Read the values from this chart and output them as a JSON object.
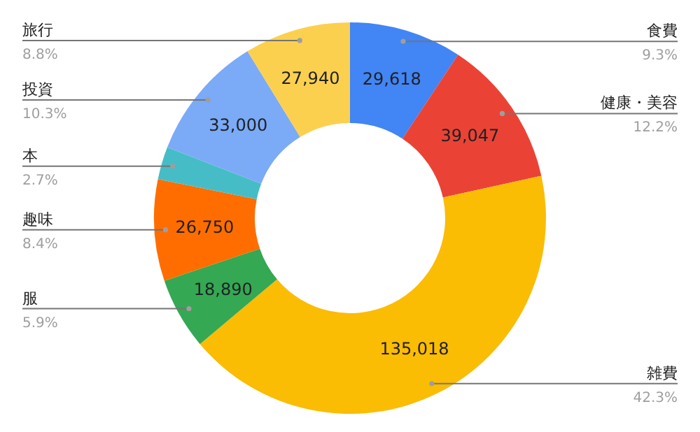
{
  "chart_data": {
    "type": "donut",
    "categories": [
      "食費",
      "健康・美容",
      "雑費",
      "服",
      "趣味",
      "本",
      "投資",
      "旅行"
    ],
    "values": [
      29618,
      39047,
      135018,
      18890,
      26750,
      8600,
      33000,
      27940
    ],
    "value_labels": [
      "29,618",
      "39,047",
      "135,018",
      "18,890",
      "26,750",
      null,
      "33,000",
      "27,940"
    ],
    "colors": [
      "#4285f4",
      "#ea4335",
      "#fbbc04",
      "#34a853",
      "#ff6d01",
      "#46bdc6",
      "#7baaf7",
      "#fcd04f"
    ],
    "annotations": [
      {
        "text": "9.3%",
        "x": "食費"
      },
      {
        "text": "12.2%",
        "x": "健康・美容"
      },
      {
        "text": "42.3%",
        "x": "雑費"
      },
      {
        "text": "5.9%",
        "x": "服"
      },
      {
        "text": "8.4%",
        "x": "趣味"
      },
      {
        "text": "2.7%",
        "x": "本"
      },
      {
        "text": "10.3%",
        "x": "投資"
      },
      {
        "text": "8.8%",
        "x": "旅行"
      }
    ]
  }
}
